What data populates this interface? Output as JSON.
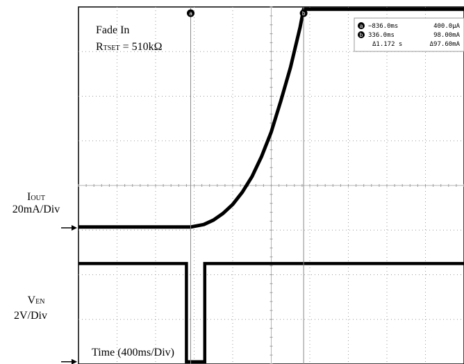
{
  "annotations": {
    "title": "Fade In",
    "rtset_main": "R",
    "rtset_sub": "TSET",
    "rtset_value": " = 510kΩ",
    "iout_main": "I",
    "iout_sub": "OUT",
    "iout_scale": "20mA/Div",
    "ven_main": "V",
    "ven_sub": "EN",
    "ven_scale": "2V/Div",
    "time_label": "Time (400ms/Div)"
  },
  "cursor_readout": {
    "a": {
      "marker": "a",
      "time": "−836.0ms",
      "value": "400.0μA"
    },
    "b": {
      "marker": "b",
      "time": "336.0ms",
      "value": "98.00mA"
    },
    "delta": {
      "time": "Δ1.172 s",
      "value": "Δ97.60mA"
    }
  },
  "chart_data": {
    "type": "line",
    "title": "Fade In",
    "xlabel": "Time (400ms/Div)",
    "x_unit": "ms",
    "xlim": [
      -2000,
      2000
    ],
    "divisions": {
      "horizontal": 10,
      "vertical": 8
    },
    "grid": true,
    "cursors": [
      {
        "name": "a",
        "x": -836.0,
        "y_mA": 0.4
      },
      {
        "name": "b",
        "x": 336.0,
        "y_mA": 98.0
      }
    ],
    "series": [
      {
        "name": "IOUT",
        "scale": "20mA/Div",
        "unit": "mA",
        "ground_marker_div": -0.95,
        "x": [
          -2000,
          -836,
          -700,
          -600,
          -500,
          -400,
          -300,
          -200,
          -100,
          0,
          100,
          200,
          300,
          336,
          2000
        ],
        "y": [
          0.4,
          0.4,
          1.5,
          3.5,
          6.5,
          10.5,
          16,
          23,
          32,
          43,
          57,
          72,
          90,
          98,
          98
        ]
      },
      {
        "name": "VEN",
        "scale": "2V/Div",
        "unit": "V",
        "ground_marker_div": -3.95,
        "x": [
          -2000,
          -880,
          -880,
          -690,
          -690,
          2000
        ],
        "y": [
          4.4,
          4.4,
          0,
          0,
          4.4,
          4.4
        ]
      }
    ]
  }
}
